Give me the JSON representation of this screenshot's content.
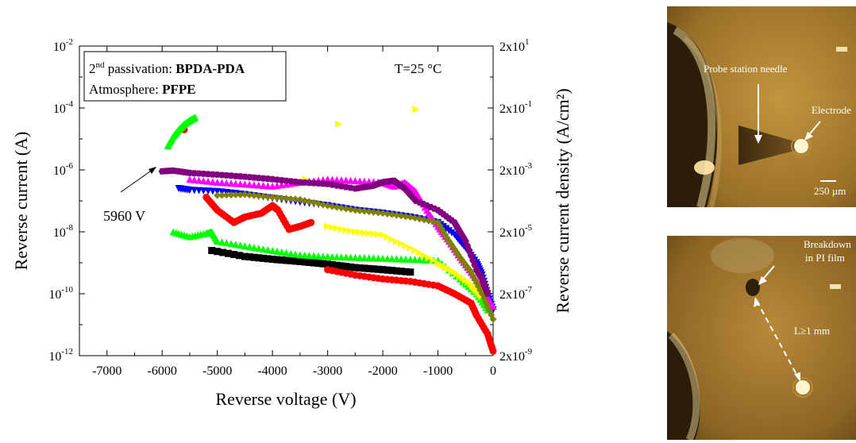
{
  "chart_data": {
    "type": "scatter",
    "xlabel": "Reverse voltage (V)",
    "ylabel_left": "Reverse current (A)",
    "ylabel_right": "Reverse current density (A/cm²)",
    "x_scale": "linear",
    "y_scale": "log",
    "xlim": [
      -7500,
      0
    ],
    "ylim": [
      1e-12,
      0.01
    ],
    "x_ticks": [
      -7000,
      -6000,
      -5000,
      -4000,
      -3000,
      -2000,
      -1000,
      0
    ],
    "x_tick_labels": [
      "-7000",
      "-6000",
      "-5000",
      "-4000",
      "-3000",
      "-2000",
      "-1000",
      "0"
    ],
    "y_ticks": [
      {
        "mant": "10",
        "exp": "-12"
      },
      {
        "mant": "10",
        "exp": "-10"
      },
      {
        "mant": "10",
        "exp": "-8"
      },
      {
        "mant": "10",
        "exp": "-6"
      },
      {
        "mant": "10",
        "exp": "-4"
      },
      {
        "mant": "10",
        "exp": "-2"
      }
    ],
    "y2_ticks": [
      {
        "mant": "2x10",
        "exp": "-9"
      },
      {
        "mant": "2x10",
        "exp": "-7"
      },
      {
        "mant": "2x10",
        "exp": "-5"
      },
      {
        "mant": "2x10",
        "exp": "-3"
      },
      {
        "mant": "2x10",
        "exp": "-1"
      },
      {
        "mant": "2x10",
        "exp": "1"
      }
    ],
    "legend_box": {
      "line1_prefix": "2",
      "line1_sup": "nd",
      "line1_text": " passivation: ",
      "line1_bold": "BPDA-PDA",
      "line2_text": "Atmosphere: ",
      "line2_bold": "PFPE"
    },
    "temperature_label": "T=25 °C",
    "arrow_annotation": "5960 V",
    "series": [
      {
        "marker": "square",
        "color": "#000000",
        "points": [
          [
            -5100,
            2.5e-09
          ],
          [
            -4500,
            1.6e-09
          ],
          [
            -4000,
            1.3e-09
          ],
          [
            -3500,
            1.1e-09
          ],
          [
            -3000,
            9e-10
          ],
          [
            -2500,
            7e-10
          ],
          [
            -2000,
            6e-10
          ],
          [
            -1500,
            5e-10
          ]
        ]
      },
      {
        "marker": "circle",
        "color": "#ff0000",
        "points": [
          [
            -5600,
            2e-05
          ],
          [
            -5200,
            1.3e-07
          ],
          [
            -5000,
            5e-08
          ],
          [
            -4700,
            2e-08
          ],
          [
            -4500,
            3e-08
          ],
          [
            -4200,
            4e-08
          ],
          [
            -4000,
            7e-08
          ],
          [
            -3900,
            5e-08
          ],
          [
            -3700,
            1.2e-08
          ],
          [
            -3500,
            1.5e-08
          ],
          [
            -3300,
            2e-08
          ],
          [
            -3000,
            6e-10
          ],
          [
            -2500,
            4e-10
          ],
          [
            -2000,
            3e-10
          ],
          [
            -1500,
            2.5e-10
          ],
          [
            -1000,
            1.8e-10
          ],
          [
            -700,
            1e-10
          ],
          [
            -400,
            5e-11
          ],
          [
            -300,
            2e-11
          ],
          [
            -100,
            5e-12
          ],
          [
            0,
            1.4e-12
          ]
        ]
      },
      {
        "marker": "triangle-up",
        "color": "#00ff00",
        "points": [
          [
            -5900,
            6e-06
          ],
          [
            -5800,
            1.2e-05
          ],
          [
            -5700,
            2e-05
          ],
          [
            -5600,
            3e-05
          ],
          [
            -5500,
            4e-05
          ],
          [
            -5400,
            5e-05
          ],
          [
            -5800,
            1e-08
          ],
          [
            -5500,
            7e-09
          ],
          [
            -5200,
            9e-09
          ],
          [
            -5100,
            1e-08
          ],
          [
            -5000,
            5e-09
          ],
          [
            -4500,
            3.5e-09
          ],
          [
            -4000,
            2.5e-09
          ],
          [
            -3500,
            1.8e-09
          ],
          [
            -3000,
            1.6e-09
          ],
          [
            -2500,
            1.5e-09
          ],
          [
            -2000,
            1.4e-09
          ],
          [
            -1500,
            1.3e-09
          ],
          [
            -1000,
            1.2e-09
          ],
          [
            -600,
            3e-10
          ],
          [
            -300,
            1e-10
          ],
          [
            -100,
            3e-11
          ]
        ]
      },
      {
        "marker": "triangle-down",
        "color": "#0000ff",
        "points": [
          [
            -5700,
            2.5e-07
          ],
          [
            -5500,
            2.2e-07
          ],
          [
            -5000,
            2e-07
          ],
          [
            -4500,
            1.6e-07
          ],
          [
            -4000,
            1.2e-07
          ],
          [
            -3500,
            9e-08
          ],
          [
            -3000,
            7e-08
          ],
          [
            -2500,
            5e-08
          ],
          [
            -2000,
            4e-08
          ],
          [
            -1500,
            3e-08
          ],
          [
            -1000,
            2e-08
          ],
          [
            -700,
            8e-09
          ],
          [
            -500,
            3e-09
          ],
          [
            -300,
            1e-09
          ],
          [
            -200,
            4e-10
          ],
          [
            -100,
            1e-10
          ],
          [
            0,
            3e-11
          ]
        ]
      },
      {
        "marker": "triangle-up",
        "color": "#ff00ff",
        "points": [
          [
            -5500,
            5e-07
          ],
          [
            -5000,
            4e-07
          ],
          [
            -4500,
            3.5e-07
          ],
          [
            -4000,
            3e-07
          ],
          [
            -3500,
            4e-07
          ],
          [
            -3000,
            5e-07
          ],
          [
            -2500,
            4.5e-07
          ],
          [
            -2000,
            4e-07
          ],
          [
            -1800,
            3e-07
          ],
          [
            -1600,
            4e-07
          ],
          [
            -1400,
            2e-07
          ],
          [
            -1200,
            5e-08
          ],
          [
            -1000,
            1.5e-08
          ],
          [
            -800,
            5e-09
          ],
          [
            -600,
            1.5e-09
          ],
          [
            -400,
            5e-10
          ],
          [
            -200,
            1.5e-10
          ],
          [
            0,
            4e-11
          ]
        ]
      },
      {
        "marker": "triangle-right",
        "color": "#ffff00",
        "points": [
          [
            -2800,
            3e-05
          ],
          [
            -1400,
            9e-05
          ],
          [
            -3400,
            5e-07
          ],
          [
            -3000,
            1.5e-08
          ],
          [
            -2500,
            1e-08
          ],
          [
            -2000,
            8e-09
          ],
          [
            -1500,
            3e-09
          ],
          [
            -1000,
            1e-09
          ],
          [
            -700,
            5e-10
          ],
          [
            -400,
            2e-10
          ],
          [
            -200,
            8e-11
          ]
        ]
      },
      {
        "marker": "diamond",
        "color": "#808000",
        "points": [
          [
            -5000,
            1.5e-07
          ],
          [
            -4500,
            1.6e-07
          ],
          [
            -4000,
            1.3e-07
          ],
          [
            -3500,
            1.1e-07
          ],
          [
            -3000,
            7e-08
          ],
          [
            -2500,
            5e-08
          ],
          [
            -2000,
            4e-08
          ],
          [
            -1500,
            3e-08
          ],
          [
            -1000,
            2e-08
          ],
          [
            -800,
            5e-09
          ],
          [
            -600,
            1.5e-09
          ],
          [
            -400,
            5e-10
          ],
          [
            -200,
            1e-10
          ],
          [
            0,
            1.5e-11
          ]
        ]
      },
      {
        "marker": "hexagon",
        "color": "#800080",
        "points": [
          [
            -6000,
            9e-07
          ],
          [
            -5800,
            9.5e-07
          ],
          [
            -5500,
            8e-07
          ],
          [
            -5000,
            7e-07
          ],
          [
            -4500,
            6e-07
          ],
          [
            -4000,
            5e-07
          ],
          [
            -3500,
            4e-07
          ],
          [
            -3000,
            3.5e-07
          ],
          [
            -2500,
            2.5e-07
          ],
          [
            -2200,
            3e-07
          ],
          [
            -2000,
            4e-07
          ],
          [
            -1800,
            4.5e-07
          ],
          [
            -1600,
            2.5e-07
          ],
          [
            -1400,
            1e-07
          ],
          [
            -1000,
            5e-08
          ],
          [
            -700,
            2e-08
          ],
          [
            -500,
            5e-09
          ],
          [
            -300,
            6e-10
          ],
          [
            -200,
            3e-10
          ],
          [
            -100,
            1e-10
          ]
        ]
      }
    ]
  },
  "photos": {
    "top": {
      "needle_label": "Probe station needle",
      "electrode_label": "Electrode",
      "scale_label": "250 µm"
    },
    "bottom": {
      "breakdown_label_1": "Breakdown",
      "breakdown_label_2": "in PI film",
      "distance_label": "L≥1 mm"
    }
  }
}
